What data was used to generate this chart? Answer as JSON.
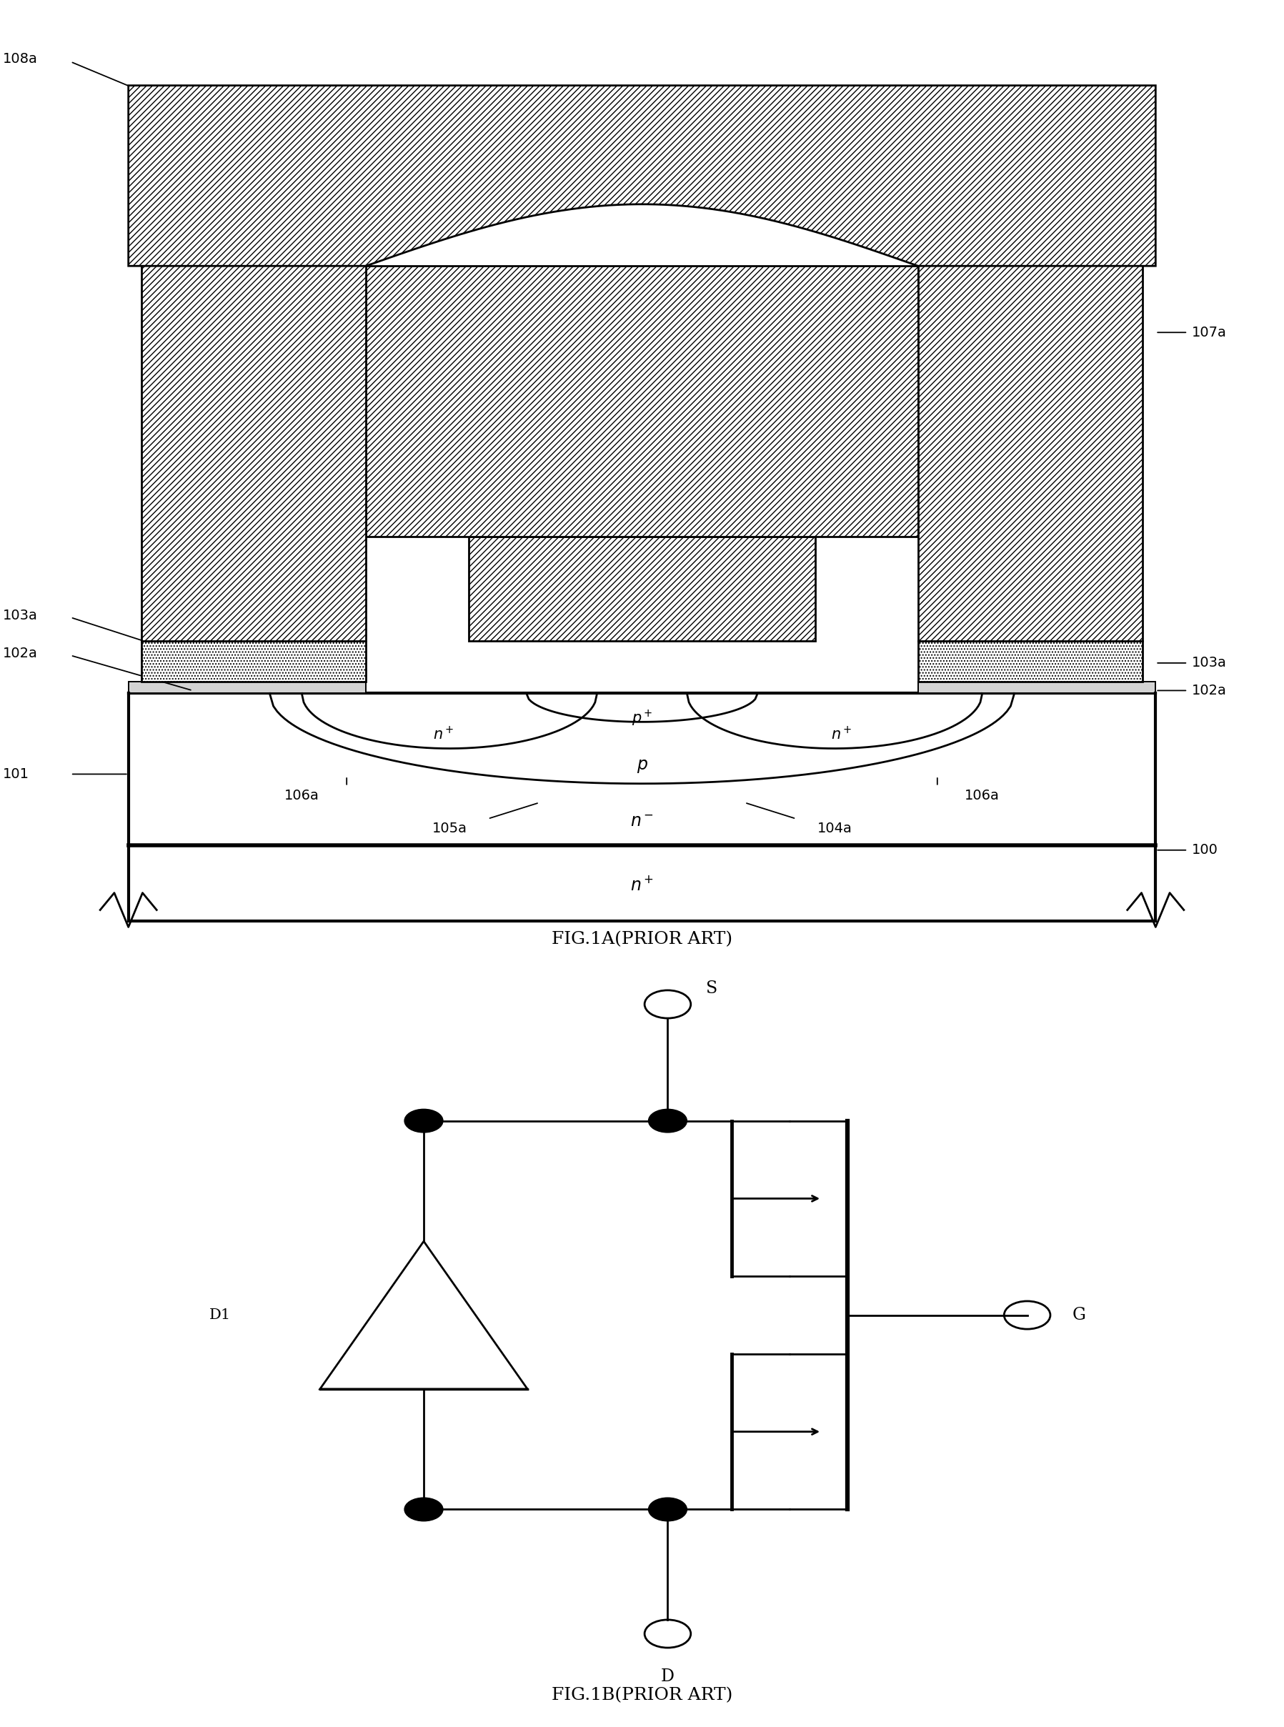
{
  "fig_width": 17.97,
  "fig_height": 24.17,
  "bg_color": "#ffffff",
  "fig1a_title": "FIG.1A(PRIOR ART)",
  "fig1b_title": "FIG.1B(PRIOR ART)",
  "hatch_metal": "////",
  "hatch_silicide": "....",
  "lw": 2.0,
  "fs_label": 14,
  "fs_internal": 15,
  "fs_title": 18
}
